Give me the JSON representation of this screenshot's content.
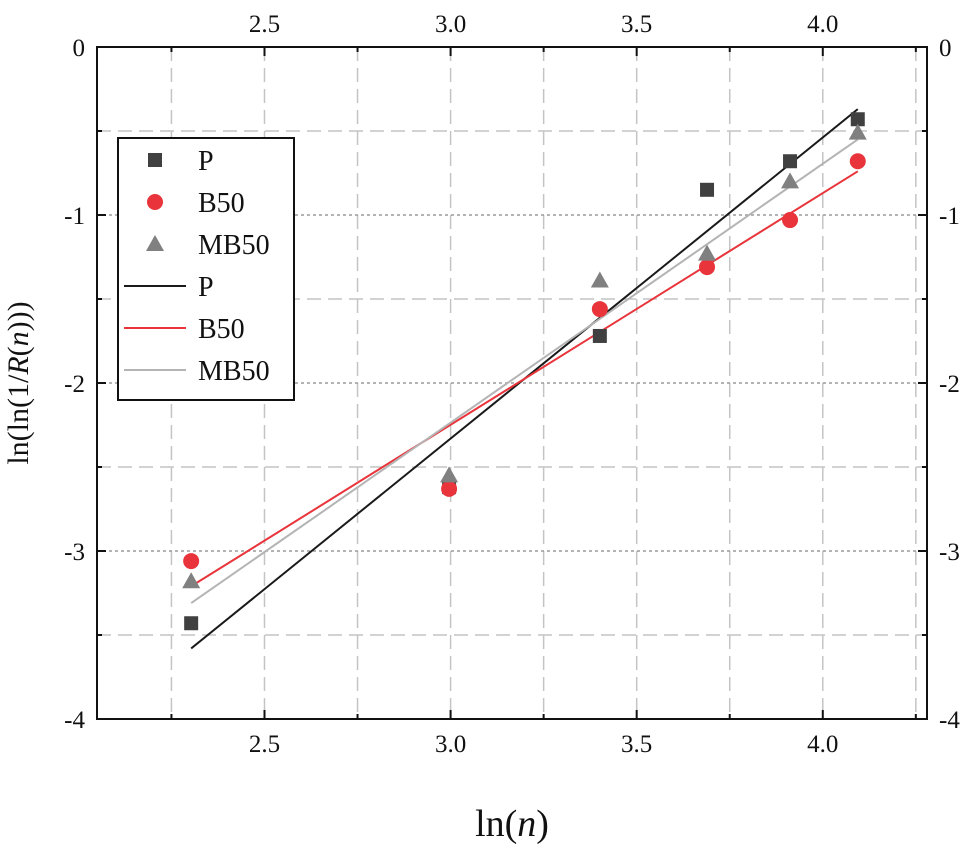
{
  "chart_data": {
    "type": "scatter",
    "xlabel": "ln(n)",
    "ylabel": "ln(ln(1/R(n)))",
    "xlim": [
      2.05,
      4.28
    ],
    "ylim": [
      -4,
      0
    ],
    "x_ticks": [
      "2.5",
      "3.0",
      "3.5",
      "4.0"
    ],
    "y_ticks": [
      "0",
      "-1",
      "-2",
      "-3",
      "-4"
    ],
    "grid": true,
    "legend_position": "top-left",
    "series": [
      {
        "name": "P",
        "kind": "points",
        "marker": "square",
        "color": "#404040",
        "x": [
          2.303,
          2.996,
          3.401,
          3.689,
          3.912,
          4.094
        ],
        "y": [
          -3.43,
          -2.62,
          -1.72,
          -0.85,
          -0.68,
          -0.43
        ]
      },
      {
        "name": "B50",
        "kind": "points",
        "marker": "circle",
        "color": "#e8343a",
        "x": [
          2.303,
          2.996,
          3.401,
          3.689,
          3.912,
          4.094
        ],
        "y": [
          -3.06,
          -2.63,
          -1.56,
          -1.31,
          -1.03,
          -0.68
        ]
      },
      {
        "name": "MB50",
        "kind": "points",
        "marker": "triangle",
        "color": "#808080",
        "x": [
          2.303,
          2.996,
          3.401,
          3.689,
          3.912,
          4.094
        ],
        "y": [
          -3.18,
          -2.55,
          -1.39,
          -1.23,
          -0.8,
          -0.51
        ]
      },
      {
        "name": "P",
        "kind": "line",
        "color": "#1a1a1a",
        "x": [
          2.303,
          4.094
        ],
        "y": [
          -3.58,
          -0.37
        ]
      },
      {
        "name": "B50",
        "kind": "line",
        "color": "#e8343a",
        "x": [
          2.303,
          4.094
        ],
        "y": [
          -3.21,
          -0.74
        ]
      },
      {
        "name": "MB50",
        "kind": "line",
        "color": "#b4b4b4",
        "x": [
          2.303,
          4.094
        ],
        "y": [
          -3.31,
          -0.55
        ]
      }
    ]
  }
}
